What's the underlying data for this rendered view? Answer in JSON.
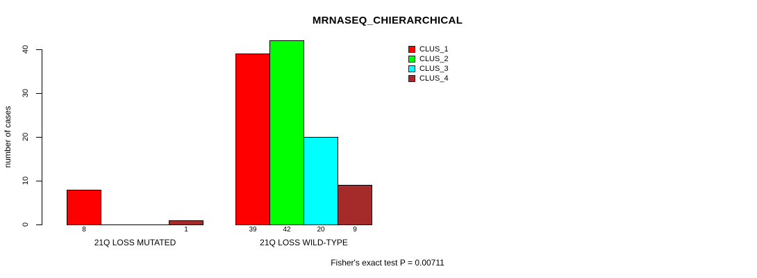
{
  "title": "MRNASEQ_CHIERARCHICAL",
  "y_axis": {
    "label": "number of cases",
    "ticks": [
      0,
      10,
      20,
      30,
      40
    ]
  },
  "footer": "Fisher's exact test P = 0.00711",
  "legend": {
    "position": "top-right",
    "items": [
      {
        "label": "CLUS_1",
        "color": "#FF0000"
      },
      {
        "label": "CLUS_2",
        "color": "#00FF00"
      },
      {
        "label": "CLUS_3",
        "color": "#00FFFF"
      },
      {
        "label": "CLUS_4",
        "color": "#A52A2A"
      }
    ]
  },
  "chart_data": {
    "type": "bar",
    "grouped": true,
    "title": "MRNASEQ_CHIERARCHICAL",
    "xlabel": "",
    "ylabel": "number of cases",
    "ylim": [
      0,
      40
    ],
    "yticks": [
      0,
      10,
      20,
      30,
      40
    ],
    "grid": false,
    "legend_position": "top-right",
    "categories": [
      "21Q LOSS MUTATED",
      "21Q LOSS WILD-TYPE"
    ],
    "series": [
      {
        "name": "CLUS_1",
        "color": "#FF0000",
        "values": [
          8,
          39
        ]
      },
      {
        "name": "CLUS_2",
        "color": "#00FF00",
        "values": [
          0,
          42
        ]
      },
      {
        "name": "CLUS_3",
        "color": "#00FFFF",
        "values": [
          0,
          20
        ]
      },
      {
        "name": "CLUS_4",
        "color": "#A52A2A",
        "values": [
          1,
          9
        ]
      }
    ],
    "bar_value_labels": [
      [
        "8",
        "",
        "",
        "1"
      ],
      [
        "39",
        "42",
        "20",
        "9"
      ]
    ],
    "annotation": "Fisher's exact test P = 0.00711"
  }
}
